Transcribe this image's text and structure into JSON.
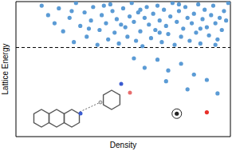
{
  "chart_data": {
    "type": "scatter",
    "x_label": "Density",
    "y_label": "Lattice Energy",
    "xlim": [
      0,
      100
    ],
    "ylim": [
      0,
      100
    ],
    "tick_labels": false,
    "grid": false,
    "hline": 66,
    "series": [
      {
        "color": "#5b9bd5",
        "marker": "circle",
        "points": [
          [
            12,
            97
          ],
          [
            15,
            90
          ],
          [
            18,
            84
          ],
          [
            20,
            95
          ],
          [
            22,
            78
          ],
          [
            25,
            88
          ],
          [
            27,
            70
          ],
          [
            28,
            99
          ],
          [
            30,
            82
          ],
          [
            32,
            92
          ],
          [
            33,
            74
          ],
          [
            35,
            86
          ],
          [
            36,
            96
          ],
          [
            38,
            68
          ],
          [
            39,
            79
          ],
          [
            40,
            90
          ],
          [
            42,
            84
          ],
          [
            43,
            72
          ],
          [
            44,
            98
          ],
          [
            45,
            93
          ],
          [
            46,
            77
          ],
          [
            47,
            87
          ],
          [
            48,
            69
          ],
          [
            50,
            95
          ],
          [
            51,
            81
          ],
          [
            52,
            74
          ],
          [
            53,
            89
          ],
          [
            54,
            99
          ],
          [
            55,
            85
          ],
          [
            56,
            71
          ],
          [
            57,
            92
          ],
          [
            58,
            78
          ],
          [
            59,
            67
          ],
          [
            60,
            88
          ],
          [
            61,
            96
          ],
          [
            62,
            83
          ],
          [
            63,
            73
          ],
          [
            64,
            91
          ],
          [
            65,
            79
          ],
          [
            66,
            97
          ],
          [
            67,
            86
          ],
          [
            68,
            70
          ],
          [
            69,
            94
          ],
          [
            70,
            82
          ],
          [
            71,
            76
          ],
          [
            72,
            89
          ],
          [
            73,
            99
          ],
          [
            74,
            68
          ],
          [
            75,
            85
          ],
          [
            76,
            93
          ],
          [
            77,
            74
          ],
          [
            78,
            80
          ],
          [
            79,
            96
          ],
          [
            80,
            88
          ],
          [
            81,
            71
          ],
          [
            82,
            84
          ],
          [
            83,
            91
          ],
          [
            84,
            77
          ],
          [
            85,
            98
          ],
          [
            86,
            69
          ],
          [
            87,
            87
          ],
          [
            88,
            94
          ],
          [
            89,
            81
          ],
          [
            90,
            75
          ],
          [
            91,
            90
          ],
          [
            92,
            97
          ],
          [
            93,
            84
          ],
          [
            94,
            72
          ],
          [
            95,
            88
          ],
          [
            96,
            79
          ],
          [
            97,
            93
          ],
          [
            98,
            86
          ],
          [
            99,
            99
          ],
          [
            26,
            93
          ],
          [
            34,
            80
          ],
          [
            41,
            97
          ],
          [
            49,
            83
          ],
          [
            58,
            94
          ],
          [
            67,
            77
          ],
          [
            76,
            98
          ],
          [
            86,
            80
          ],
          [
            93,
            68
          ],
          [
            55,
            58
          ],
          [
            60,
            51
          ],
          [
            66,
            57
          ],
          [
            71,
            49
          ],
          [
            77,
            54
          ],
          [
            83,
            46
          ],
          [
            89,
            42
          ],
          [
            94,
            32
          ],
          [
            80,
            35
          ],
          [
            70,
            41
          ]
        ]
      },
      {
        "color": "#222222",
        "marker": "circled",
        "points": [
          [
            75,
            17
          ]
        ]
      },
      {
        "color": "#e8302a",
        "marker": "circle",
        "points": [
          [
            89,
            18
          ]
        ]
      }
    ]
  }
}
